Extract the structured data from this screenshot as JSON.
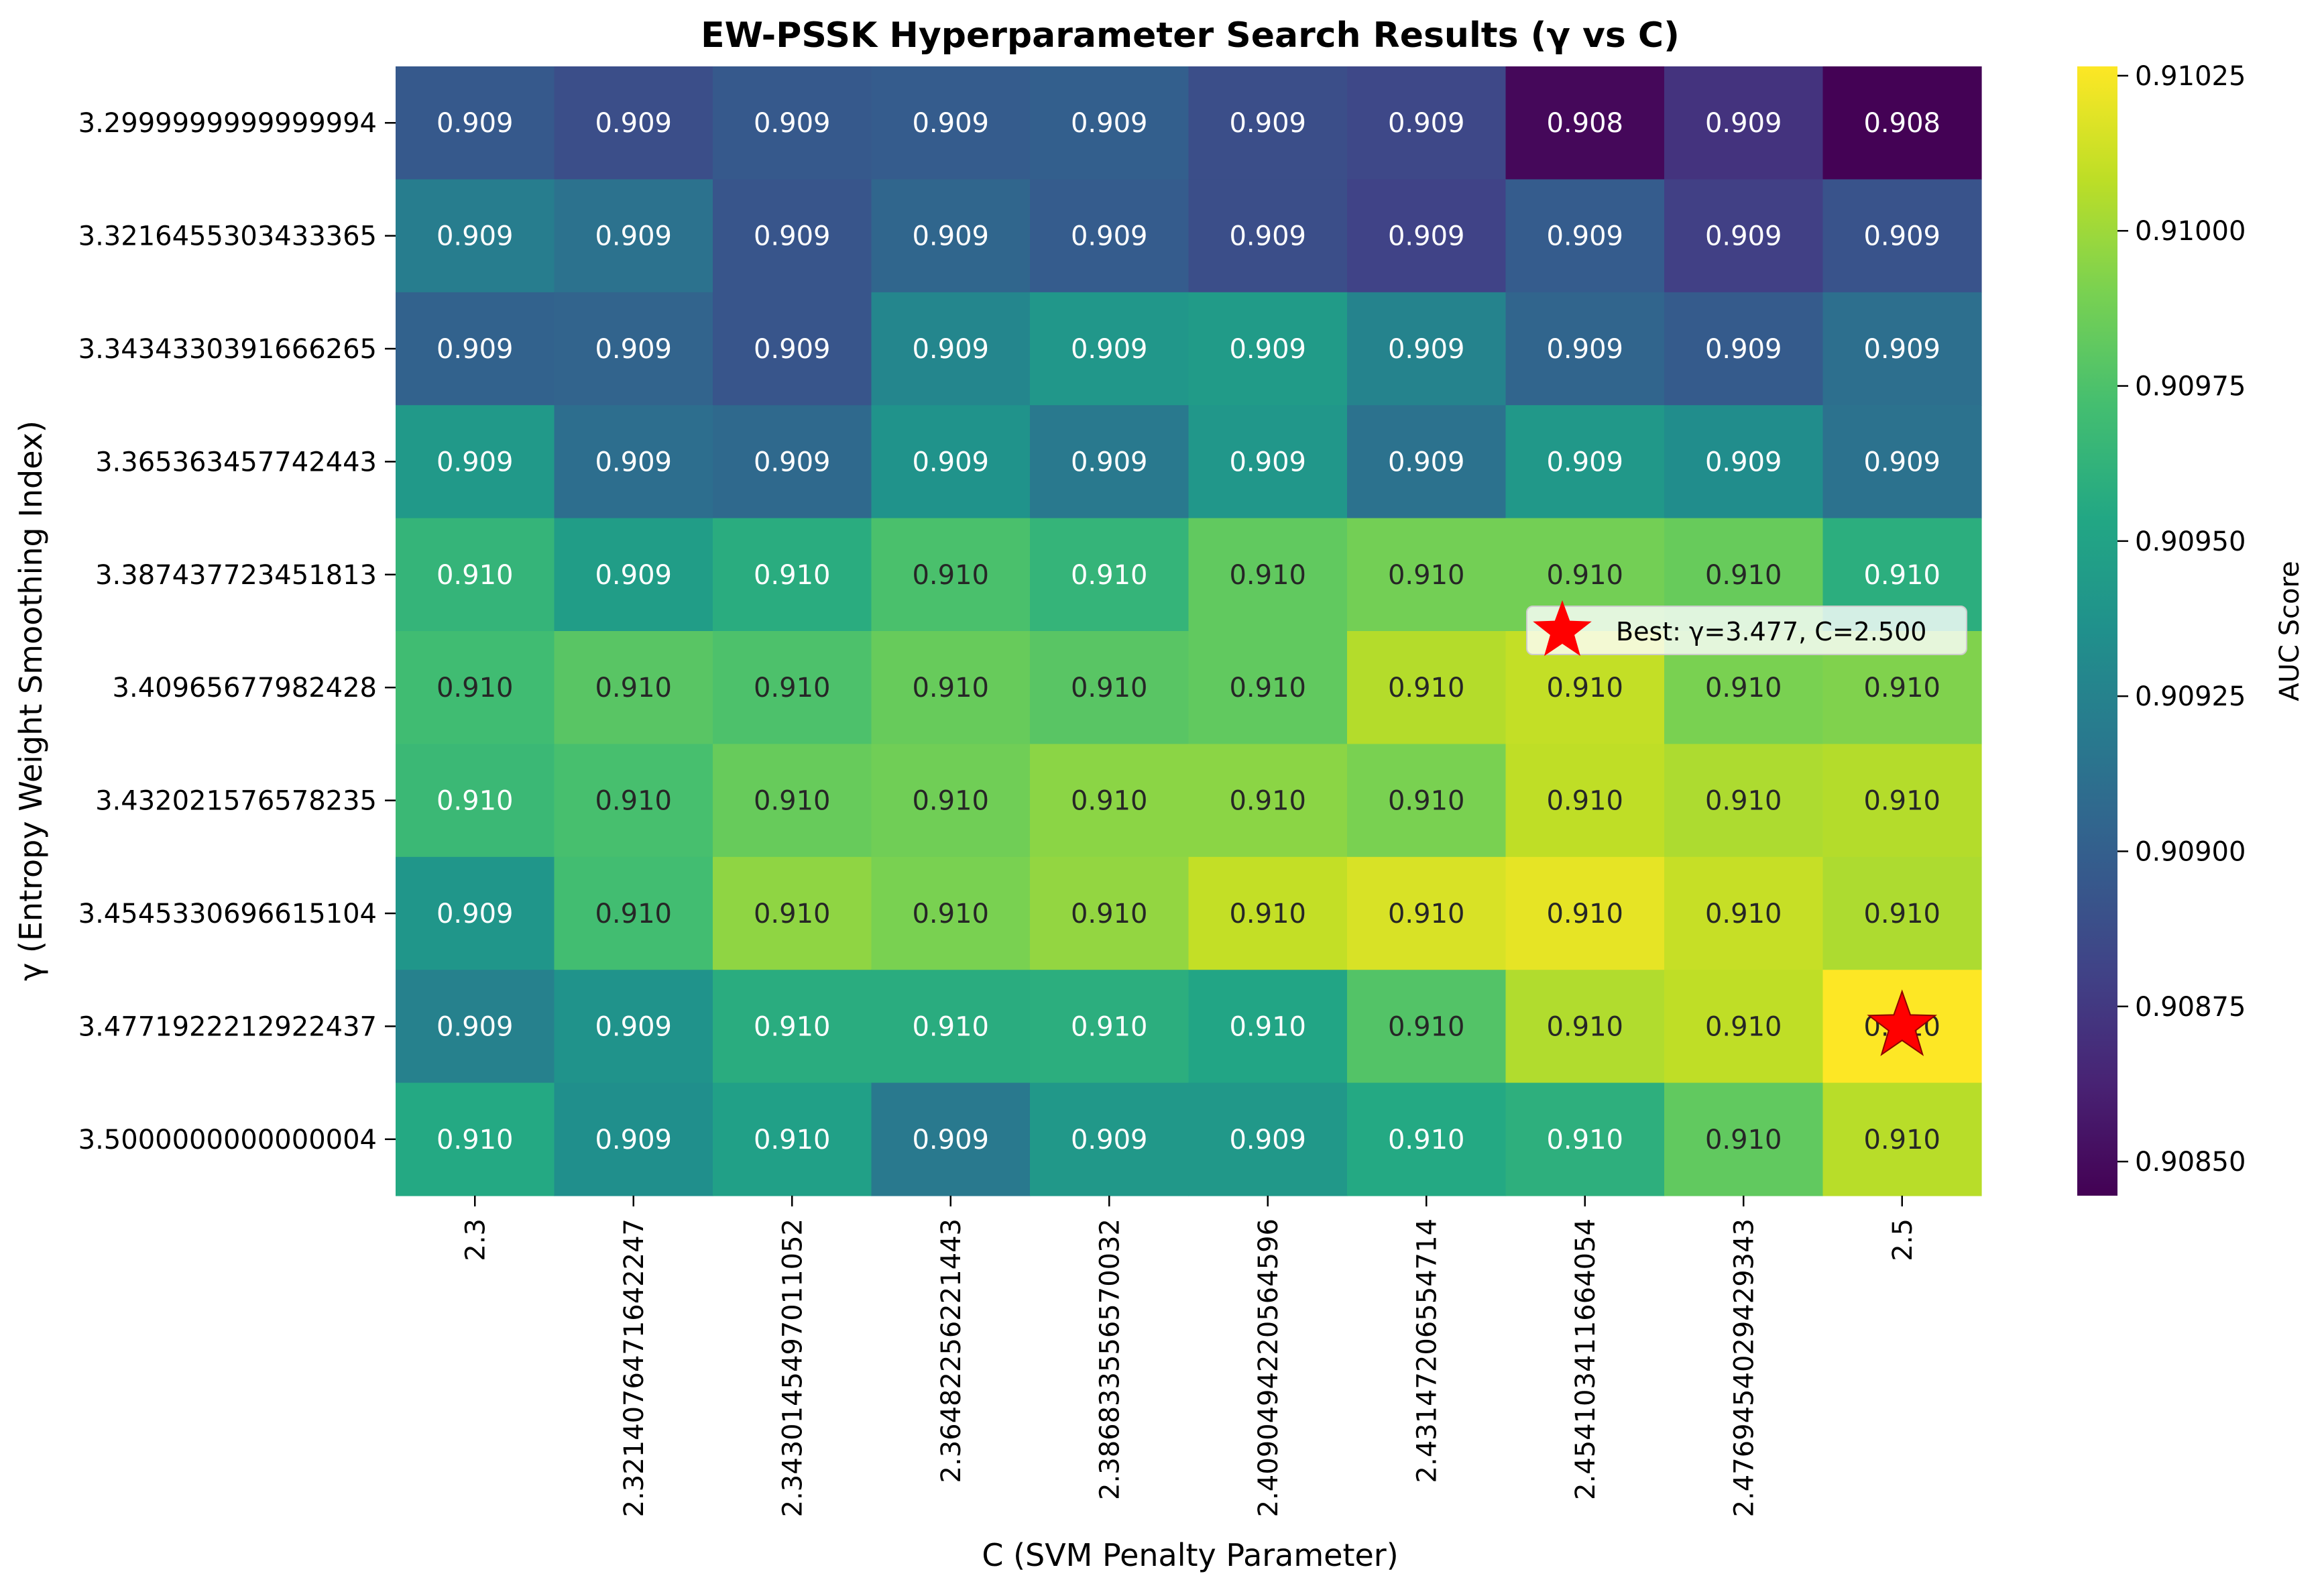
{
  "chart_data": {
    "type": "heatmap",
    "title": "EW-PSSK Hyperparameter Search Results (γ vs C)",
    "xlabel": "C (SVM Penalty Parameter)",
    "ylabel": "γ (Entropy Weight Smoothing Index)",
    "x_ticks": [
      "2.3",
      "2.321407647164224​7",
      "2.343014549701105​2",
      "2.364822562214​43",
      "2.38683355657003​2",
      "2.409049422056459​6",
      "2.431472065547​14",
      "2.454103411664054",
      "2.476945402942934​3",
      "2.5"
    ],
    "y_ticks": [
      "3.2999999999999994",
      "3.3216455303433365",
      "3.3434330391666265",
      "3.365363457742443",
      "3.387437723451813",
      "3.40965677982428",
      "3.432021576578235",
      "3.4545330696615104",
      "3.4771922212922437",
      "3.5000000000000004"
    ],
    "values": [
      [
        0.90896,
        0.90888,
        0.90896,
        0.90898,
        0.909,
        0.90888,
        0.90884,
        0.90848,
        0.90872,
        0.90845
      ],
      [
        0.90921,
        0.90913,
        0.90893,
        0.90905,
        0.90898,
        0.90888,
        0.90881,
        0.90898,
        0.90879,
        0.90892
      ],
      [
        0.90902,
        0.90903,
        0.90893,
        0.90928,
        0.90941,
        0.90944,
        0.90926,
        0.90904,
        0.90897,
        0.90911
      ],
      [
        0.90943,
        0.9091,
        0.90907,
        0.90938,
        0.90918,
        0.90941,
        0.90913,
        0.90942,
        0.90933,
        0.90913
      ],
      [
        0.90964,
        0.90946,
        0.90958,
        0.90974,
        0.90964,
        0.90982,
        0.90988,
        0.90988,
        0.90984,
        0.90959
      ],
      [
        0.9097,
        0.90979,
        0.90975,
        0.90984,
        0.90979,
        0.90982,
        0.91006,
        0.9101,
        0.9099,
        0.90992
      ],
      [
        0.90967,
        0.90973,
        0.90984,
        0.90987,
        0.90995,
        0.90995,
        0.9099,
        0.91009,
        0.91004,
        0.91006
      ],
      [
        0.9094,
        0.90971,
        0.90996,
        0.9099,
        0.90997,
        0.9101,
        0.91016,
        0.9102,
        0.91011,
        0.91004
      ],
      [
        0.90924,
        0.90938,
        0.90958,
        0.90958,
        0.90959,
        0.90952,
        0.90977,
        0.91005,
        0.91009,
        0.91027
      ],
      [
        0.90955,
        0.90935,
        0.90948,
        0.90918,
        0.90942,
        0.90942,
        0.90955,
        0.9096,
        0.90982,
        0.91007
      ]
    ],
    "cell_labels": [
      [
        "0.909",
        "0.909",
        "0.909",
        "0.909",
        "0.909",
        "0.909",
        "0.909",
        "0.908",
        "0.909",
        "0.908"
      ],
      [
        "0.909",
        "0.909",
        "0.909",
        "0.909",
        "0.909",
        "0.909",
        "0.909",
        "0.909",
        "0.909",
        "0.909"
      ],
      [
        "0.909",
        "0.909",
        "0.909",
        "0.909",
        "0.909",
        "0.909",
        "0.909",
        "0.909",
        "0.909",
        "0.909"
      ],
      [
        "0.909",
        "0.909",
        "0.909",
        "0.909",
        "0.909",
        "0.909",
        "0.909",
        "0.909",
        "0.909",
        "0.909"
      ],
      [
        "0.910",
        "0.909",
        "0.910",
        "0.910",
        "0.910",
        "0.910",
        "0.910",
        "0.910",
        "0.910",
        "0.910"
      ],
      [
        "0.910",
        "0.910",
        "0.910",
        "0.910",
        "0.910",
        "0.910",
        "0.910",
        "0.910",
        "0.910",
        "0.910"
      ],
      [
        "0.910",
        "0.910",
        "0.910",
        "0.910",
        "0.910",
        "0.910",
        "0.910",
        "0.910",
        "0.910",
        "0.910"
      ],
      [
        "0.909",
        "0.910",
        "0.910",
        "0.910",
        "0.910",
        "0.910",
        "0.910",
        "0.910",
        "0.910",
        "0.910"
      ],
      [
        "0.909",
        "0.909",
        "0.910",
        "0.910",
        "0.910",
        "0.910",
        "0.910",
        "0.910",
        "0.910",
        "0.910"
      ],
      [
        "0.910",
        "0.909",
        "0.910",
        "0.909",
        "0.909",
        "0.909",
        "0.910",
        "0.910",
        "0.910",
        "0.910"
      ]
    ],
    "colormap": "viridis",
    "colorbar": {
      "label": "AUC Score",
      "range": [
        0.908445,
        0.910265
      ],
      "ticks": [
        0.9085,
        0.90875,
        0.909,
        0.90925,
        0.9095,
        0.90975,
        0.91,
        0.91025
      ],
      "tick_labels": [
        "0.90850",
        "0.90875",
        "0.90900",
        "0.90925",
        "0.90950",
        "0.90975",
        "0.91000",
        "0.91025"
      ]
    },
    "best_marker": {
      "row": 8,
      "col": 9,
      "color": "#ff0000",
      "label": "Best: γ=3.477, C=2.500"
    },
    "legend_placement": "right, middle of plot",
    "grid": false
  }
}
